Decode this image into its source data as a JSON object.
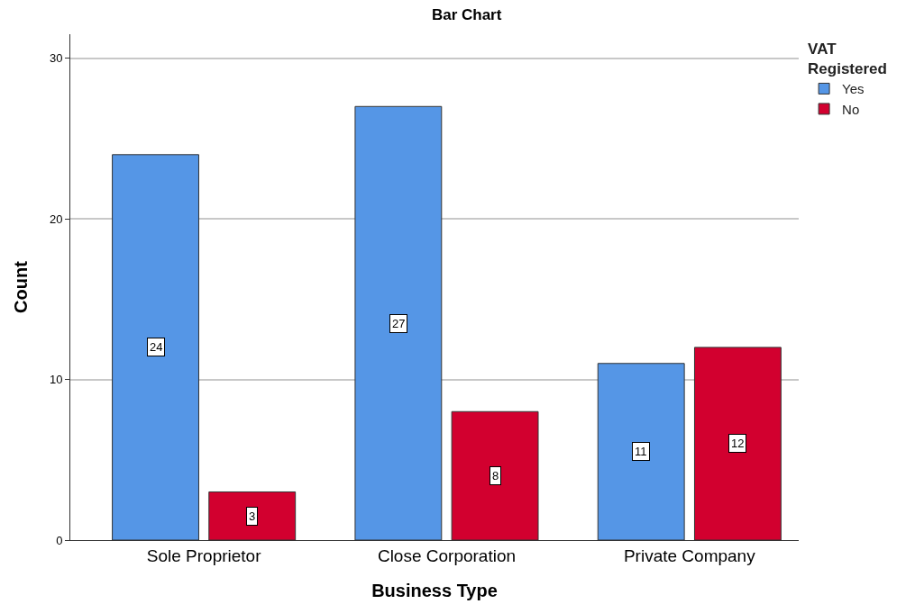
{
  "chart_data": {
    "type": "bar",
    "title": "Bar Chart",
    "xlabel": "Business Type",
    "ylabel": "Count",
    "legend_title": "VAT Registered",
    "categories": [
      "Sole Proprietor",
      "Close Corporation",
      "Private Company"
    ],
    "series": [
      {
        "name": "Yes",
        "color": "#5596e6",
        "values": [
          24,
          27,
          11
        ]
      },
      {
        "name": "No",
        "color": "#d2002f",
        "values": [
          3,
          8,
          12
        ]
      }
    ],
    "ylim": [
      0,
      31.5
    ],
    "yticks": [
      0,
      10,
      20,
      30
    ],
    "grid": "y",
    "legend": "top right",
    "data_labels": true
  }
}
